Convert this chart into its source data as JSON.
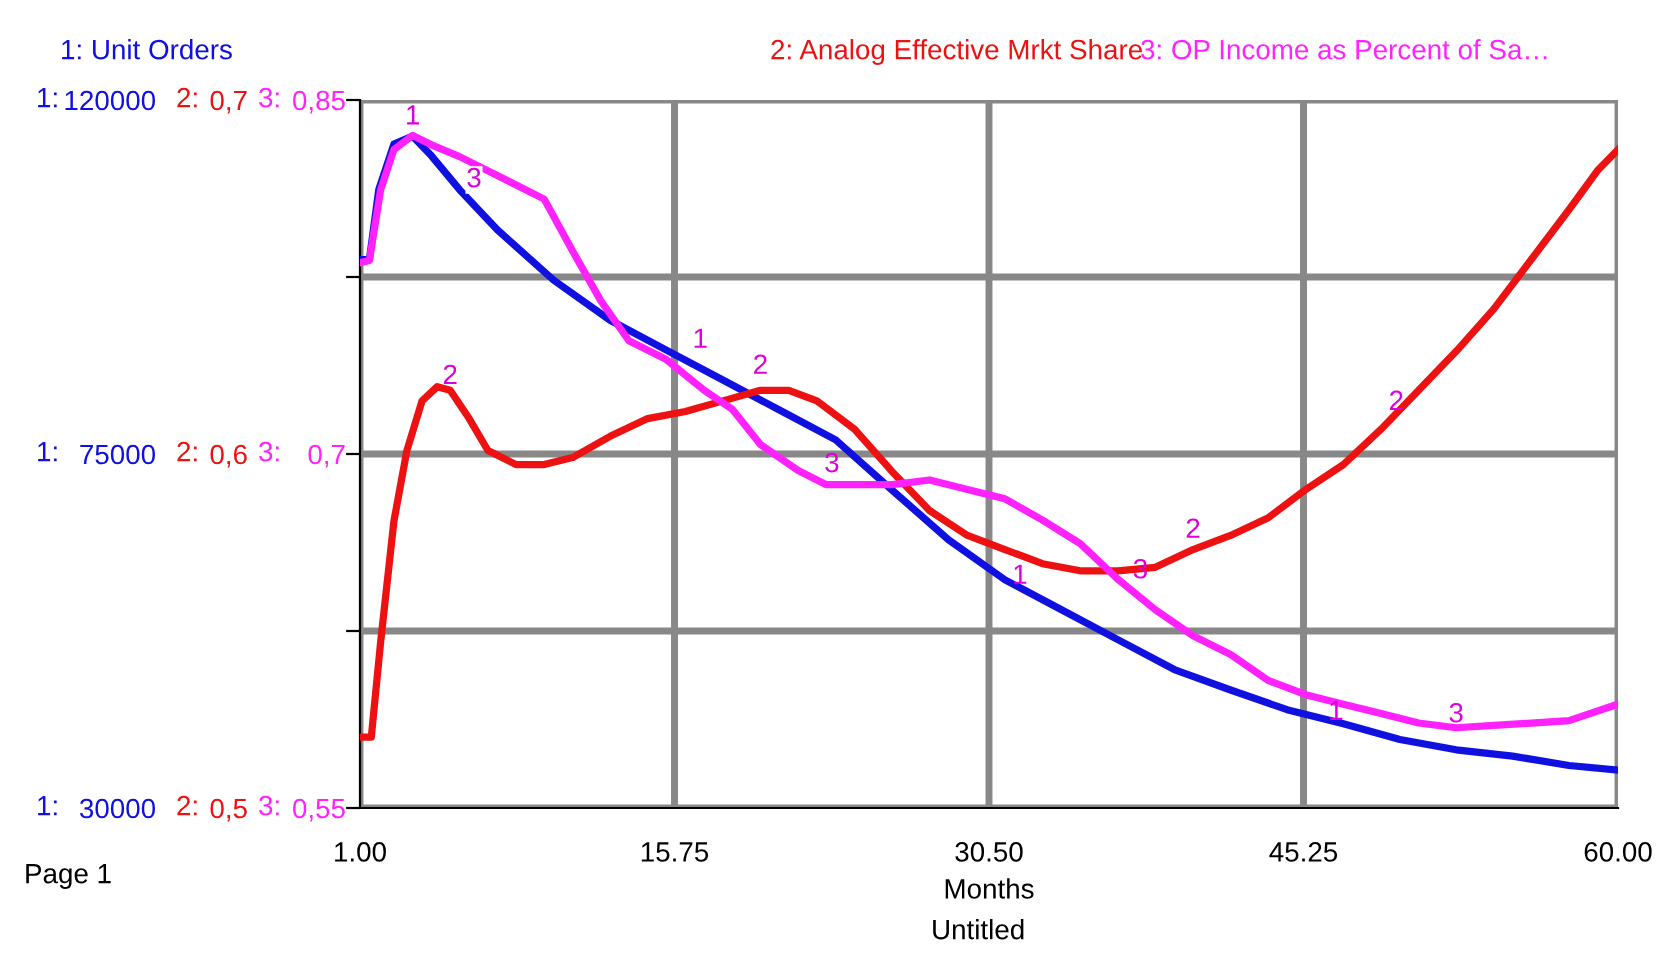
{
  "chart_data": {
    "type": "line",
    "title": "Untitled",
    "xlabel": "Months",
    "xlim": [
      1,
      60
    ],
    "xticks": [
      {
        "value": 1,
        "label": "1.00"
      },
      {
        "value": 15.75,
        "label": "15.75"
      },
      {
        "value": 30.5,
        "label": "30.50"
      },
      {
        "value": 45.25,
        "label": "45.25"
      },
      {
        "value": 60,
        "label": "60.00"
      }
    ],
    "ylabel": "1:",
    "y2label": "2:",
    "y3label": "3:",
    "ylim": [
      30000,
      120000
    ],
    "yticks": [
      30000,
      {
        "value": 52500,
        "label": null
      },
      75000,
      {
        "value": 97500,
        "label": null
      },
      120000
    ],
    "y2lim": [
      0.5,
      0.7
    ],
    "y2ticks": [
      {
        "value": 0.5,
        "label": "0,5"
      },
      {
        "value": 0.6,
        "label": "0,6"
      },
      {
        "value": 0.7,
        "label": "0,7"
      }
    ],
    "y3lim": [
      0.55,
      0.85
    ],
    "y3ticks": [
      {
        "value": 0.55,
        "label": "0,55"
      },
      {
        "value": 0.7,
        "label": "0,7"
      },
      {
        "value": 0.85,
        "label": "0,85"
      }
    ],
    "grid": true,
    "legend": "top",
    "marker": "none",
    "line_style": "solid",
    "series": [
      {
        "name": "1: Unit Orders",
        "color": "#1010e0",
        "axis": "y",
        "x": [
          1.0,
          1.44,
          1.88,
          2.59,
          3.47,
          4.35,
          5.67,
          7.44,
          10.08,
          12.73,
          15.37,
          18.02,
          20.67,
          23.31,
          25.96,
          28.6,
          31.25,
          33.9,
          36.54,
          39.19,
          41.83,
          44.48,
          47.12,
          49.77,
          52.41,
          55.06,
          57.7,
          60.0
        ],
        "values": [
          99700,
          99700,
          108600,
          114400,
          115400,
          112900,
          108600,
          103500,
          97100,
          92000,
          88200,
          84400,
          80600,
          76800,
          70400,
          64100,
          59000,
          55200,
          51400,
          47600,
          45000,
          42500,
          40700,
          38700,
          37400,
          36600,
          35400,
          34800
        ]
      },
      {
        "name": "2: Analog Effective Mrkt Share",
        "color": "#ee1111",
        "axis": "y2",
        "x": [
          1.0,
          1.53,
          1.97,
          2.59,
          3.2,
          3.91,
          4.62,
          5.23,
          6.12,
          7.0,
          8.32,
          9.64,
          10.97,
          12.73,
          14.49,
          16.26,
          18.02,
          19.78,
          21.11,
          22.43,
          24.19,
          25.96,
          27.72,
          29.49,
          31.25,
          33.01,
          34.78,
          36.54,
          38.3,
          40.07,
          41.83,
          43.6,
          45.36,
          47.12,
          48.89,
          50.65,
          52.41,
          54.18,
          55.94,
          57.7,
          59.03,
          60.0
        ],
        "values": [
          0.52,
          0.52,
          0.547,
          0.581,
          0.601,
          0.615,
          0.619,
          0.618,
          0.61,
          0.601,
          0.597,
          0.597,
          0.599,
          0.605,
          0.61,
          0.612,
          0.615,
          0.618,
          0.618,
          0.615,
          0.607,
          0.595,
          0.584,
          0.577,
          0.573,
          0.569,
          0.567,
          0.567,
          0.568,
          0.573,
          0.577,
          0.582,
          0.59,
          0.597,
          0.607,
          0.618,
          0.629,
          0.641,
          0.655,
          0.669,
          0.68,
          0.686
        ]
      },
      {
        "name": "3: OP Income as Percent of Sa…",
        "color": "#ff22ff",
        "axis": "y3",
        "x": [
          1.0,
          1.44,
          1.97,
          2.59,
          3.47,
          4.35,
          5.67,
          7.44,
          9.64,
          10.97,
          12.29,
          13.61,
          15.37,
          17.14,
          18.46,
          19.78,
          21.55,
          22.87,
          24.19,
          25.96,
          27.72,
          29.49,
          31.25,
          33.01,
          34.78,
          36.54,
          38.3,
          40.07,
          41.83,
          43.6,
          45.36,
          47.12,
          48.89,
          50.65,
          52.41,
          54.18,
          55.94,
          57.7,
          60.0
        ],
        "values": [
          0.781,
          0.782,
          0.812,
          0.829,
          0.835,
          0.831,
          0.826,
          0.818,
          0.808,
          0.786,
          0.765,
          0.748,
          0.74,
          0.727,
          0.719,
          0.704,
          0.693,
          0.687,
          0.687,
          0.687,
          0.689,
          0.685,
          0.681,
          0.672,
          0.662,
          0.647,
          0.634,
          0.623,
          0.615,
          0.604,
          0.598,
          0.594,
          0.59,
          0.586,
          0.584,
          0.585,
          0.586,
          0.587,
          0.594
        ]
      }
    ],
    "annotations": [
      {
        "text": "1",
        "x": 3.47,
        "y": 115400
      },
      {
        "text": "1",
        "x": 16.96,
        "y": 87000
      },
      {
        "text": "1",
        "x": 31.95,
        "y": 57000
      },
      {
        "text": "1",
        "x": 46.77,
        "y": 39700
      },
      {
        "text": "2",
        "x": 5.23,
        "y": 82400
      },
      {
        "text": "2",
        "x": 19.78,
        "y": 83700
      },
      {
        "text": "2",
        "x": 40.07,
        "y": 62850
      },
      {
        "text": "2",
        "x": 49.6,
        "y": 79100
      },
      "3",
      {
        "text": "3",
        "x": 23.13,
        "y": 71200
      },
      {
        "text": "3",
        "x": 37.6,
        "y": 57700
      },
      {
        "text": "3",
        "x": 52.41,
        "y": 39400
      },
      "Page 1"
    ]
  }
}
